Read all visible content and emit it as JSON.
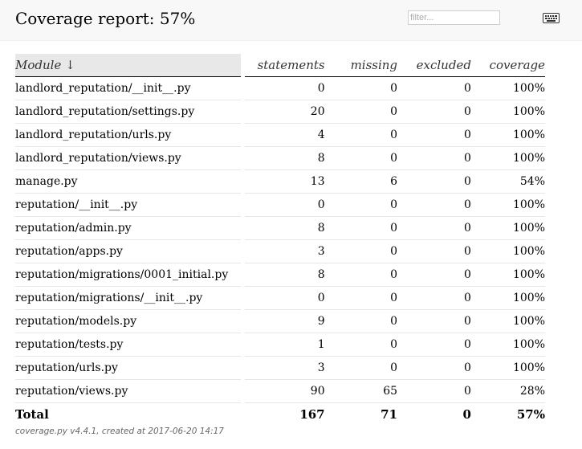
{
  "header": {
    "title": "Coverage report: 57%",
    "filter_placeholder": "filter...",
    "keyboard_icon": "keyboard-icon"
  },
  "table": {
    "columns": {
      "module": "Module ↓",
      "statements": "statements",
      "missing": "missing",
      "excluded": "excluded",
      "coverage": "coverage"
    },
    "rows": [
      {
        "module": "landlord_reputation/__init__.py",
        "statements": "0",
        "missing": "0",
        "excluded": "0",
        "coverage": "100%"
      },
      {
        "module": "landlord_reputation/settings.py",
        "statements": "20",
        "missing": "0",
        "excluded": "0",
        "coverage": "100%"
      },
      {
        "module": "landlord_reputation/urls.py",
        "statements": "4",
        "missing": "0",
        "excluded": "0",
        "coverage": "100%"
      },
      {
        "module": "landlord_reputation/views.py",
        "statements": "8",
        "missing": "0",
        "excluded": "0",
        "coverage": "100%"
      },
      {
        "module": "manage.py",
        "statements": "13",
        "missing": "6",
        "excluded": "0",
        "coverage": "54%"
      },
      {
        "module": "reputation/__init__.py",
        "statements": "0",
        "missing": "0",
        "excluded": "0",
        "coverage": "100%"
      },
      {
        "module": "reputation/admin.py",
        "statements": "8",
        "missing": "0",
        "excluded": "0",
        "coverage": "100%"
      },
      {
        "module": "reputation/apps.py",
        "statements": "3",
        "missing": "0",
        "excluded": "0",
        "coverage": "100%"
      },
      {
        "module": "reputation/migrations/0001_initial.py",
        "statements": "8",
        "missing": "0",
        "excluded": "0",
        "coverage": "100%"
      },
      {
        "module": "reputation/migrations/__init__.py",
        "statements": "0",
        "missing": "0",
        "excluded": "0",
        "coverage": "100%"
      },
      {
        "module": "reputation/models.py",
        "statements": "9",
        "missing": "0",
        "excluded": "0",
        "coverage": "100%"
      },
      {
        "module": "reputation/tests.py",
        "statements": "1",
        "missing": "0",
        "excluded": "0",
        "coverage": "100%"
      },
      {
        "module": "reputation/urls.py",
        "statements": "3",
        "missing": "0",
        "excluded": "0",
        "coverage": "100%"
      },
      {
        "module": "reputation/views.py",
        "statements": "90",
        "missing": "65",
        "excluded": "0",
        "coverage": "28%"
      }
    ],
    "total": {
      "module": "Total",
      "statements": "167",
      "missing": "71",
      "excluded": "0",
      "coverage": "57%"
    }
  },
  "footer": {
    "prefix": "coverage.py v4.4.1",
    "created": ", created at 2017-06-20 14:17"
  }
}
